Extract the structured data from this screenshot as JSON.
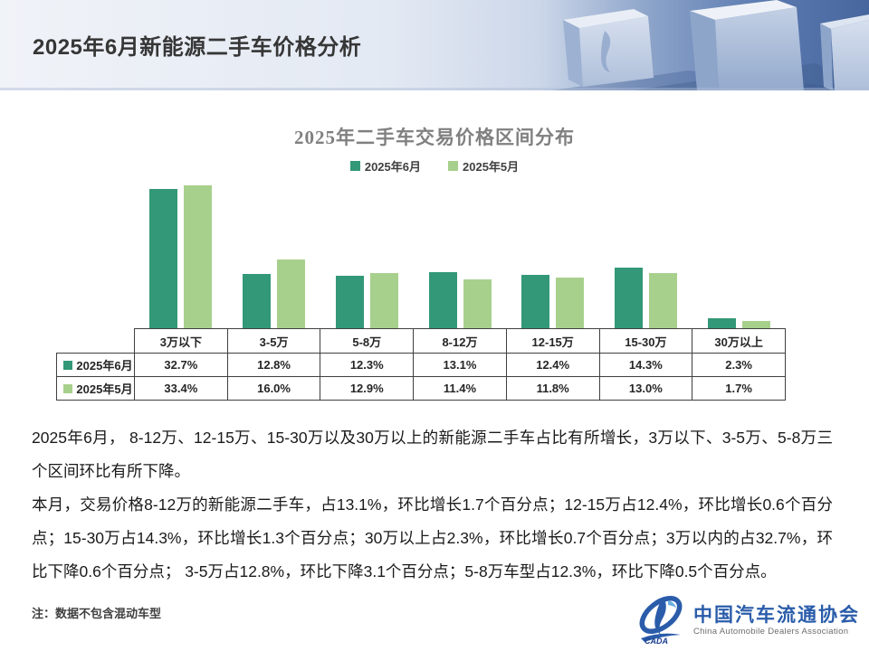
{
  "header": {
    "title": "2025年6月新能源二手车价格分析"
  },
  "chart_data": {
    "type": "bar",
    "title": "2025年二手车交易价格区间分布",
    "categories": [
      "3万以下",
      "3-5万",
      "5-8万",
      "8-12万",
      "12-15万",
      "15-30万",
      "30万以上"
    ],
    "series": [
      {
        "name": "2025年6月",
        "color": "#339878",
        "values": [
          32.7,
          12.8,
          12.3,
          13.1,
          12.4,
          14.3,
          2.3
        ]
      },
      {
        "name": "2025年5月",
        "color": "#a8d08d",
        "values": [
          33.4,
          16.0,
          12.9,
          11.4,
          11.8,
          13.0,
          1.7
        ]
      }
    ],
    "value_suffix": "%",
    "ylim": [
      0,
      36
    ],
    "grid": false,
    "legend_position": "top",
    "y_axis_hidden": true
  },
  "body": {
    "paragraphs": [
      "2025年6月， 8-12万、12-15万、15-30万以及30万以上的新能源二手车占比有所增长，3万以下、3-5万、5-8万三个区间环比有所下降。",
      "本月，交易价格8-12万的新能源二手车，占13.1%，环比增长1.7个百分点；12-15万占12.4%，环比增长0.6个百分点；15-30万占14.3%，环比增长1.3个百分点；30万以上占2.3%，环比增长0.7个百分点；3万以内的占32.7%，环比下降0.6个百分点； 3-5万占12.8%，环比下降3.1个百分点；5-8万车型占12.3%，环比下降0.5个百分点。"
    ]
  },
  "footer": {
    "note": "注：数据不包含混动车型",
    "logo": {
      "acronym": "CADA",
      "name_cn": "中国汽车流通协会",
      "name_en": "China Automobile Dealers Association",
      "color": "#2a5caa"
    }
  }
}
